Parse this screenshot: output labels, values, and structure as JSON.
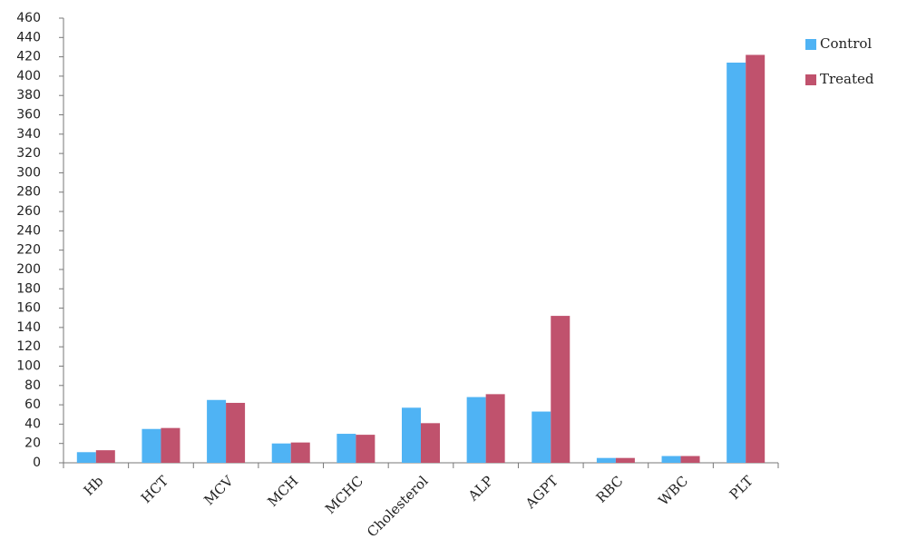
{
  "chart_data": {
    "type": "bar",
    "categories": [
      "Hb",
      "HCT",
      "MCV",
      "MCH",
      "MCHC",
      "Cholesterol",
      "ALP",
      "AGPT",
      "RBC",
      "WBC",
      "PLT"
    ],
    "series": [
      {
        "name": "Control",
        "color": "#4fb3f4",
        "values": [
          11,
          35,
          65,
          20,
          30,
          57,
          68,
          53,
          5,
          7,
          414
        ]
      },
      {
        "name": "Treated",
        "color": "#c0526d",
        "values": [
          13,
          36,
          62,
          21,
          29,
          41,
          71,
          152,
          5,
          7,
          422
        ]
      }
    ],
    "ylim": [
      0,
      460
    ],
    "yticks": [
      0,
      20,
      40,
      60,
      80,
      100,
      120,
      140,
      160,
      180,
      200,
      220,
      240,
      260,
      280,
      300,
      320,
      340,
      360,
      380,
      400,
      420,
      440,
      460
    ],
    "grid": false,
    "legend": "right"
  }
}
